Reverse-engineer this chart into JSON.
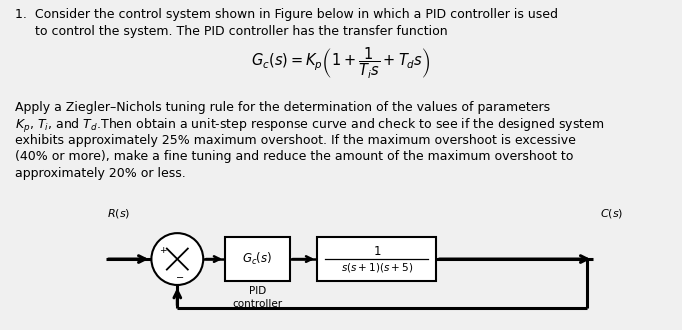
{
  "background_color": "#f0f0f0",
  "block_bg": "#ffffff",
  "text_color": "#000000",
  "figsize": [
    6.82,
    3.3
  ],
  "dpi": 100,
  "text_fontsize": 9.0,
  "formula_fontsize": 10.5,
  "line1a": "1.  Consider the control system shown in Figure below in which a PID controller is used",
  "line1b": "     to control the system. The PID controller has the transfer function",
  "line2": "Apply a Ziegler–Nichols tuning rule for the determination of the values of parameters",
  "line3": "$K_p$, $T_i$, and $T_d$.Then obtain a unit-step response curve and check to see if the designed system",
  "line4": "exhibits approximately 25% maximum overshoot. If the maximum overshoot is excessive",
  "line5": "(40% or more), make a fine tuning and reduce the amount of the maximum overshoot to",
  "line6": "approximately 20% or less.",
  "formula": "$G_c(s) = K_p\\left(1 + \\dfrac{1}{T_i s} + T_d s\\right)$"
}
